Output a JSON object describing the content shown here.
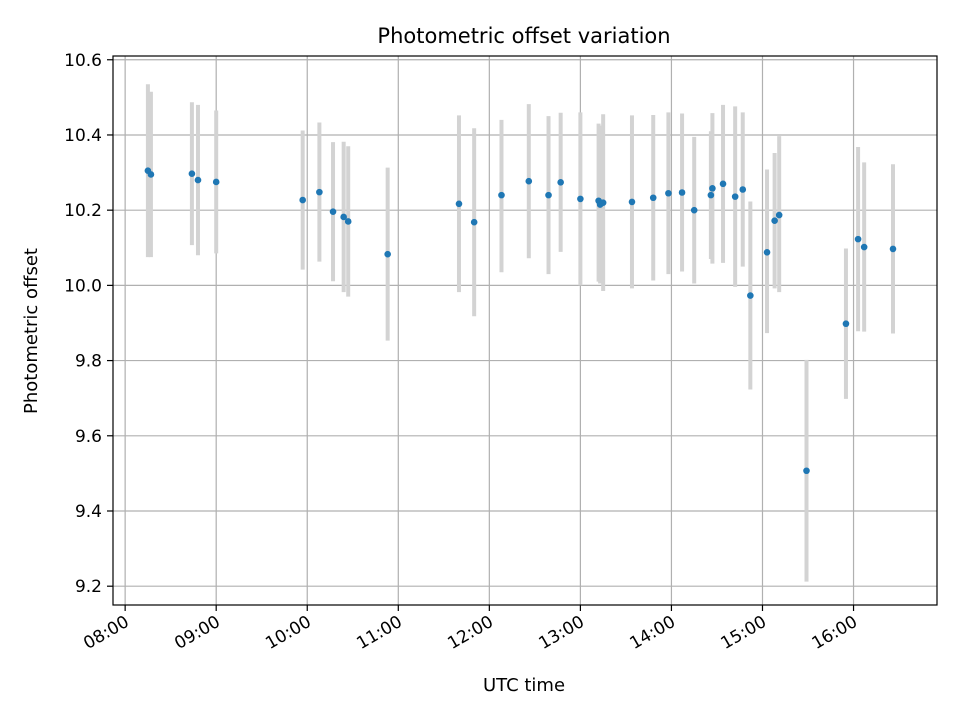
{
  "chart_data": {
    "type": "scatter",
    "title": "Photometric offset variation",
    "xlabel": "UTC time",
    "ylabel": "Photometric offset",
    "x_ticks": [
      "08:00",
      "09:00",
      "10:00",
      "11:00",
      "12:00",
      "13:00",
      "14:00",
      "15:00",
      "16:00"
    ],
    "y_ticks": [
      "9.2",
      "9.4",
      "9.6",
      "9.8",
      "10.0",
      "10.2",
      "10.4",
      "10.6"
    ],
    "xlim": [
      "07:52",
      "16:55"
    ],
    "ylim": [
      9.15,
      10.61
    ],
    "grid": true,
    "colors": {
      "marker": "#1f77b4",
      "errorbar": "#d3d3d3",
      "grid": "#b0b0b0"
    },
    "points": [
      {
        "time": "08:15",
        "y": 10.305,
        "lo": 10.075,
        "hi": 10.535
      },
      {
        "time": "08:17",
        "y": 10.295,
        "lo": 10.075,
        "hi": 10.515
      },
      {
        "time": "08:44",
        "y": 10.297,
        "lo": 10.107,
        "hi": 10.487
      },
      {
        "time": "08:48",
        "y": 10.28,
        "lo": 10.08,
        "hi": 10.48
      },
      {
        "time": "09:00",
        "y": 10.275,
        "lo": 10.085,
        "hi": 10.465
      },
      {
        "time": "09:57",
        "y": 10.227,
        "lo": 10.042,
        "hi": 10.412
      },
      {
        "time": "10:08",
        "y": 10.248,
        "lo": 10.063,
        "hi": 10.433
      },
      {
        "time": "10:17",
        "y": 10.196,
        "lo": 10.011,
        "hi": 10.381
      },
      {
        "time": "10:24",
        "y": 10.182,
        "lo": 9.982,
        "hi": 10.382
      },
      {
        "time": "10:27",
        "y": 10.17,
        "lo": 9.97,
        "hi": 10.37
      },
      {
        "time": "10:53",
        "y": 10.083,
        "lo": 9.853,
        "hi": 10.313
      },
      {
        "time": "11:40",
        "y": 10.217,
        "lo": 9.982,
        "hi": 10.452
      },
      {
        "time": "11:50",
        "y": 10.168,
        "lo": 9.918,
        "hi": 10.418
      },
      {
        "time": "12:08",
        "y": 10.24,
        "lo": 10.035,
        "hi": 10.44
      },
      {
        "time": "12:26",
        "y": 10.277,
        "lo": 10.072,
        "hi": 10.482
      },
      {
        "time": "12:39",
        "y": 10.24,
        "lo": 10.03,
        "hi": 10.45
      },
      {
        "time": "12:47",
        "y": 10.274,
        "lo": 10.089,
        "hi": 10.459
      },
      {
        "time": "13:00",
        "y": 10.23,
        "lo": 10.0,
        "hi": 10.46
      },
      {
        "time": "13:12",
        "y": 10.225,
        "lo": 10.01,
        "hi": 10.43
      },
      {
        "time": "13:13",
        "y": 10.215,
        "lo": 10.005,
        "hi": 10.425
      },
      {
        "time": "13:15",
        "y": 10.22,
        "lo": 9.985,
        "hi": 10.455
      },
      {
        "time": "13:34",
        "y": 10.222,
        "lo": 9.992,
        "hi": 10.452
      },
      {
        "time": "13:48",
        "y": 10.233,
        "lo": 10.013,
        "hi": 10.453
      },
      {
        "time": "13:58",
        "y": 10.245,
        "lo": 10.03,
        "hi": 10.46
      },
      {
        "time": "14:07",
        "y": 10.247,
        "lo": 10.037,
        "hi": 10.457
      },
      {
        "time": "14:15",
        "y": 10.2,
        "lo": 10.005,
        "hi": 10.395
      },
      {
        "time": "14:26",
        "y": 10.24,
        "lo": 10.07,
        "hi": 10.41
      },
      {
        "time": "14:27",
        "y": 10.258,
        "lo": 10.058,
        "hi": 10.458
      },
      {
        "time": "14:34",
        "y": 10.27,
        "lo": 10.06,
        "hi": 10.48
      },
      {
        "time": "14:42",
        "y": 10.236,
        "lo": 9.996,
        "hi": 10.476
      },
      {
        "time": "14:47",
        "y": 10.255,
        "lo": 10.05,
        "hi": 10.46
      },
      {
        "time": "14:52",
        "y": 9.973,
        "lo": 9.723,
        "hi": 10.223
      },
      {
        "time": "15:03",
        "y": 10.088,
        "lo": 9.873,
        "hi": 10.308
      },
      {
        "time": "15:08",
        "y": 10.172,
        "lo": 9.992,
        "hi": 10.352
      },
      {
        "time": "15:11",
        "y": 10.187,
        "lo": 9.982,
        "hi": 10.397
      },
      {
        "time": "15:29",
        "y": 9.507,
        "lo": 9.212,
        "hi": 9.802
      },
      {
        "time": "15:55",
        "y": 9.898,
        "lo": 9.698,
        "hi": 10.098
      },
      {
        "time": "16:03",
        "y": 10.123,
        "lo": 9.878,
        "hi": 10.368
      },
      {
        "time": "16:07",
        "y": 10.102,
        "lo": 9.877,
        "hi": 10.327
      },
      {
        "time": "16:26",
        "y": 10.097,
        "lo": 9.872,
        "hi": 10.322
      }
    ]
  }
}
